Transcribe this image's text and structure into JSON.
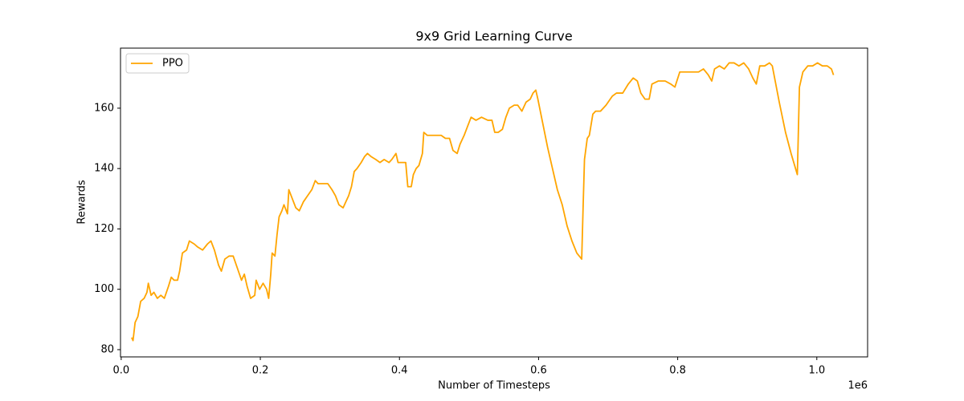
{
  "chart_data": {
    "type": "line",
    "title": "9x9 Grid Learning Curve",
    "x_label": "Number of Timesteps",
    "y_label": "Rewards",
    "x_offset_label": "1e6",
    "x": [
      0.015,
      0.017,
      0.02,
      0.024,
      0.028,
      0.033,
      0.037,
      0.039,
      0.043,
      0.047,
      0.052,
      0.057,
      0.062,
      0.068,
      0.072,
      0.076,
      0.081,
      0.084,
      0.088,
      0.094,
      0.098,
      0.105,
      0.11,
      0.117,
      0.124,
      0.129,
      0.134,
      0.14,
      0.144,
      0.149,
      0.155,
      0.161,
      0.164,
      0.17,
      0.173,
      0.177,
      0.181,
      0.186,
      0.192,
      0.194,
      0.199,
      0.204,
      0.209,
      0.212,
      0.215,
      0.217,
      0.221,
      0.224,
      0.227,
      0.231,
      0.234,
      0.239,
      0.241,
      0.246,
      0.251,
      0.256,
      0.262,
      0.268,
      0.274,
      0.279,
      0.283,
      0.289,
      0.297,
      0.303,
      0.308,
      0.313,
      0.319,
      0.323,
      0.327,
      0.331,
      0.335,
      0.339,
      0.345,
      0.35,
      0.354,
      0.359,
      0.366,
      0.372,
      0.378,
      0.385,
      0.389,
      0.395,
      0.398,
      0.403,
      0.409,
      0.412,
      0.417,
      0.42,
      0.424,
      0.428,
      0.433,
      0.435,
      0.44,
      0.446,
      0.453,
      0.46,
      0.466,
      0.472,
      0.477,
      0.483,
      0.487,
      0.493,
      0.498,
      0.503,
      0.51,
      0.518,
      0.527,
      0.533,
      0.537,
      0.542,
      0.548,
      0.553,
      0.558,
      0.565,
      0.57,
      0.576,
      0.582,
      0.588,
      0.592,
      0.596,
      0.599,
      0.606,
      0.613,
      0.62,
      0.627,
      0.634,
      0.641,
      0.648,
      0.655,
      0.662,
      0.664,
      0.666,
      0.67,
      0.673,
      0.678,
      0.682,
      0.689,
      0.697,
      0.706,
      0.712,
      0.721,
      0.729,
      0.736,
      0.742,
      0.747,
      0.753,
      0.759,
      0.763,
      0.772,
      0.782,
      0.79,
      0.796,
      0.803,
      0.813,
      0.821,
      0.83,
      0.837,
      0.844,
      0.849,
      0.853,
      0.86,
      0.867,
      0.874,
      0.881,
      0.888,
      0.895,
      0.902,
      0.908,
      0.913,
      0.918,
      0.925,
      0.932,
      0.936,
      0.946,
      0.955,
      0.963,
      0.972,
      0.975,
      0.977,
      0.98,
      0.987,
      0.994,
      1.001,
      1.008,
      1.015,
      1.021,
      1.024
    ],
    "series": [
      {
        "name": "PPO",
        "color": "#ffa500",
        "values": [
          84,
          83,
          89,
          91,
          96,
          97,
          99,
          102,
          98,
          99,
          97,
          98,
          97,
          101,
          104,
          103,
          103,
          106,
          112,
          113,
          116,
          115,
          114,
          113,
          115,
          116,
          113,
          108,
          106,
          110,
          111,
          111,
          109,
          105,
          103,
          105,
          101,
          97,
          98,
          103,
          100,
          102,
          100,
          97,
          105,
          112,
          111,
          118,
          124,
          126,
          128,
          125,
          133,
          130,
          127,
          126,
          129,
          131,
          133,
          136,
          135,
          135,
          135,
          133,
          131,
          128,
          127,
          129,
          131,
          134,
          139,
          140,
          142,
          144,
          145,
          144,
          143,
          142,
          143,
          142,
          143,
          145,
          142,
          142,
          142,
          134,
          134,
          138,
          140,
          141,
          145,
          152,
          151,
          151,
          151,
          151,
          150,
          150,
          146,
          145,
          148,
          151,
          154,
          157,
          156,
          157,
          156,
          156,
          152,
          152,
          153,
          157,
          160,
          161,
          161,
          159,
          162,
          163,
          165,
          166,
          163,
          155,
          147,
          140,
          133,
          128,
          121,
          116,
          112,
          110,
          127,
          143,
          150,
          151,
          158,
          159,
          159,
          161,
          164,
          165,
          165,
          168,
          170,
          169,
          165,
          163,
          163,
          168,
          169,
          169,
          168,
          167,
          172,
          172,
          172,
          172,
          173,
          171,
          169,
          173,
          174,
          173,
          175,
          175,
          174,
          175,
          173,
          170,
          168,
          174,
          174,
          175,
          174,
          162,
          152,
          145,
          138,
          167,
          169,
          172,
          174,
          174,
          175,
          174,
          174,
          173,
          171
        ]
      }
    ],
    "xlim": [
      -0.001,
      1.073
    ],
    "ylim": [
      77.6,
      179.9
    ],
    "xticks": [
      {
        "value": 0,
        "label": "0.0"
      },
      0.2,
      0.4,
      0.6,
      0.8,
      {
        "value": 1,
        "label": "1.0"
      }
    ],
    "yticks": [
      80,
      100,
      120,
      140,
      160
    ],
    "grid": false,
    "legend": "upper left"
  }
}
